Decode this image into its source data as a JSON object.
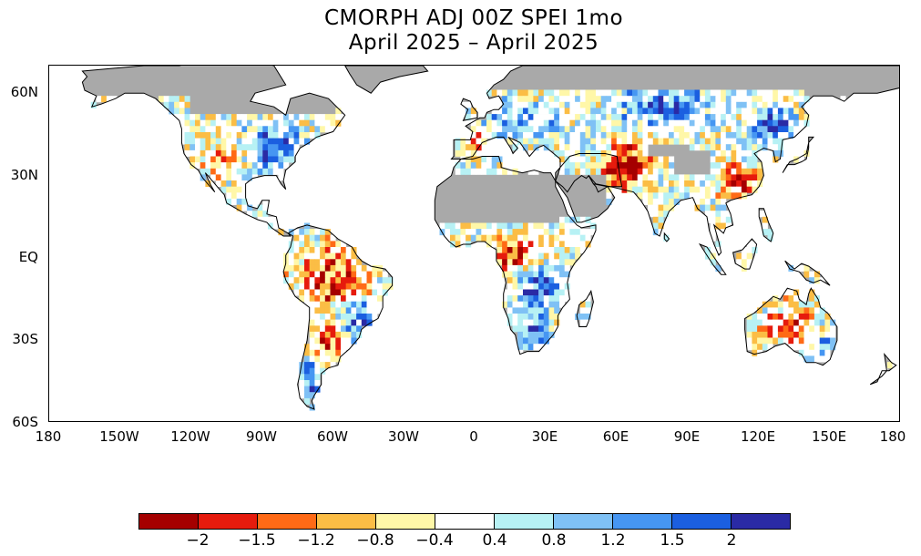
{
  "title": {
    "line1": "CMORPH ADJ 00Z SPEI 1mo",
    "line2": "April 2025 – April 2025"
  },
  "map": {
    "projection": "equirectangular",
    "lon_range": [
      -180,
      180
    ],
    "lat_range": [
      -60,
      70
    ],
    "lat_axis_labels": [
      "60N",
      "30N",
      "EQ",
      "30S",
      "60S"
    ],
    "lon_axis_labels": [
      "180",
      "150W",
      "120W",
      "90W",
      "60W",
      "30W",
      "0",
      "30E",
      "60E",
      "90E",
      "120E",
      "150E",
      "180"
    ],
    "ocean_color": "#ffffff",
    "no_data_color": "#a9a9a9",
    "coastline_color": "#000000"
  },
  "colorbar": {
    "colors": [
      "#a50000",
      "#e61b0d",
      "#ff6a16",
      "#fbbd45",
      "#fff7a8",
      "#ffffff",
      "#b7f1f4",
      "#7fc1f5",
      "#4696f2",
      "#1b5fe0",
      "#2a2aa5"
    ],
    "tick_labels": [
      "−2",
      "−1.5",
      "−1.2",
      "−0.8",
      "−0.4",
      "0.4",
      "0.8",
      "1.2",
      "1.5",
      "2"
    ]
  }
}
